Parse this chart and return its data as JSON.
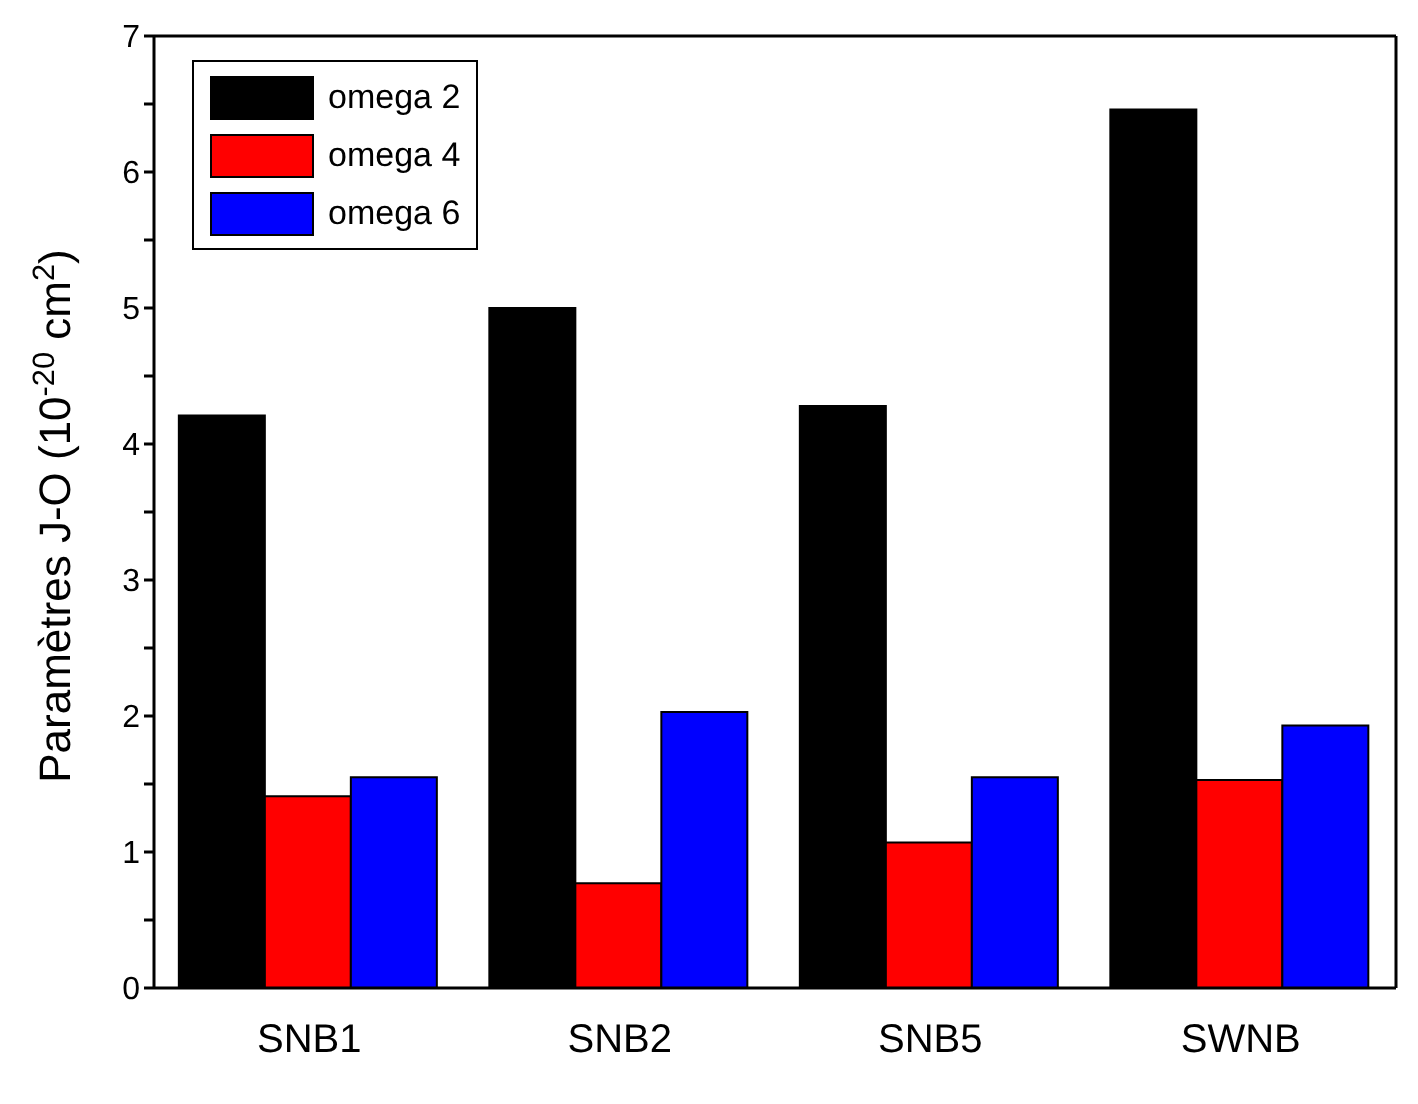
{
  "chart_data": {
    "type": "bar",
    "ylabel": "Paramètres J-O (10$^{-20}$ cm$^{2}$)",
    "categories": [
      "SNB1",
      "SNB2",
      "SNB5",
      "SWNB"
    ],
    "series": [
      {
        "name": "omega 2",
        "color": "#000000",
        "values": [
          4.21,
          5.0,
          4.28,
          6.46
        ]
      },
      {
        "name": "omega 4",
        "color": "#ff0000",
        "values": [
          1.41,
          0.77,
          1.07,
          1.53
        ]
      },
      {
        "name": "omega 6",
        "color": "#0000ff",
        "values": [
          1.55,
          2.03,
          1.55,
          1.93
        ]
      }
    ],
    "ylim": [
      0,
      7
    ],
    "yticks": [
      0,
      {
        "value": 0.5,
        "label": null
      },
      1,
      {
        "value": 1.5,
        "label": null
      },
      2,
      {
        "value": 2.5,
        "label": null
      },
      3,
      {
        "value": 3.5,
        "label": null
      },
      4,
      {
        "value": 4.5,
        "label": null
      },
      5,
      {
        "value": 5.5,
        "label": null
      },
      6,
      {
        "value": 6.5,
        "label": null
      },
      7
    ],
    "grid": false,
    "legend": "top left"
  }
}
